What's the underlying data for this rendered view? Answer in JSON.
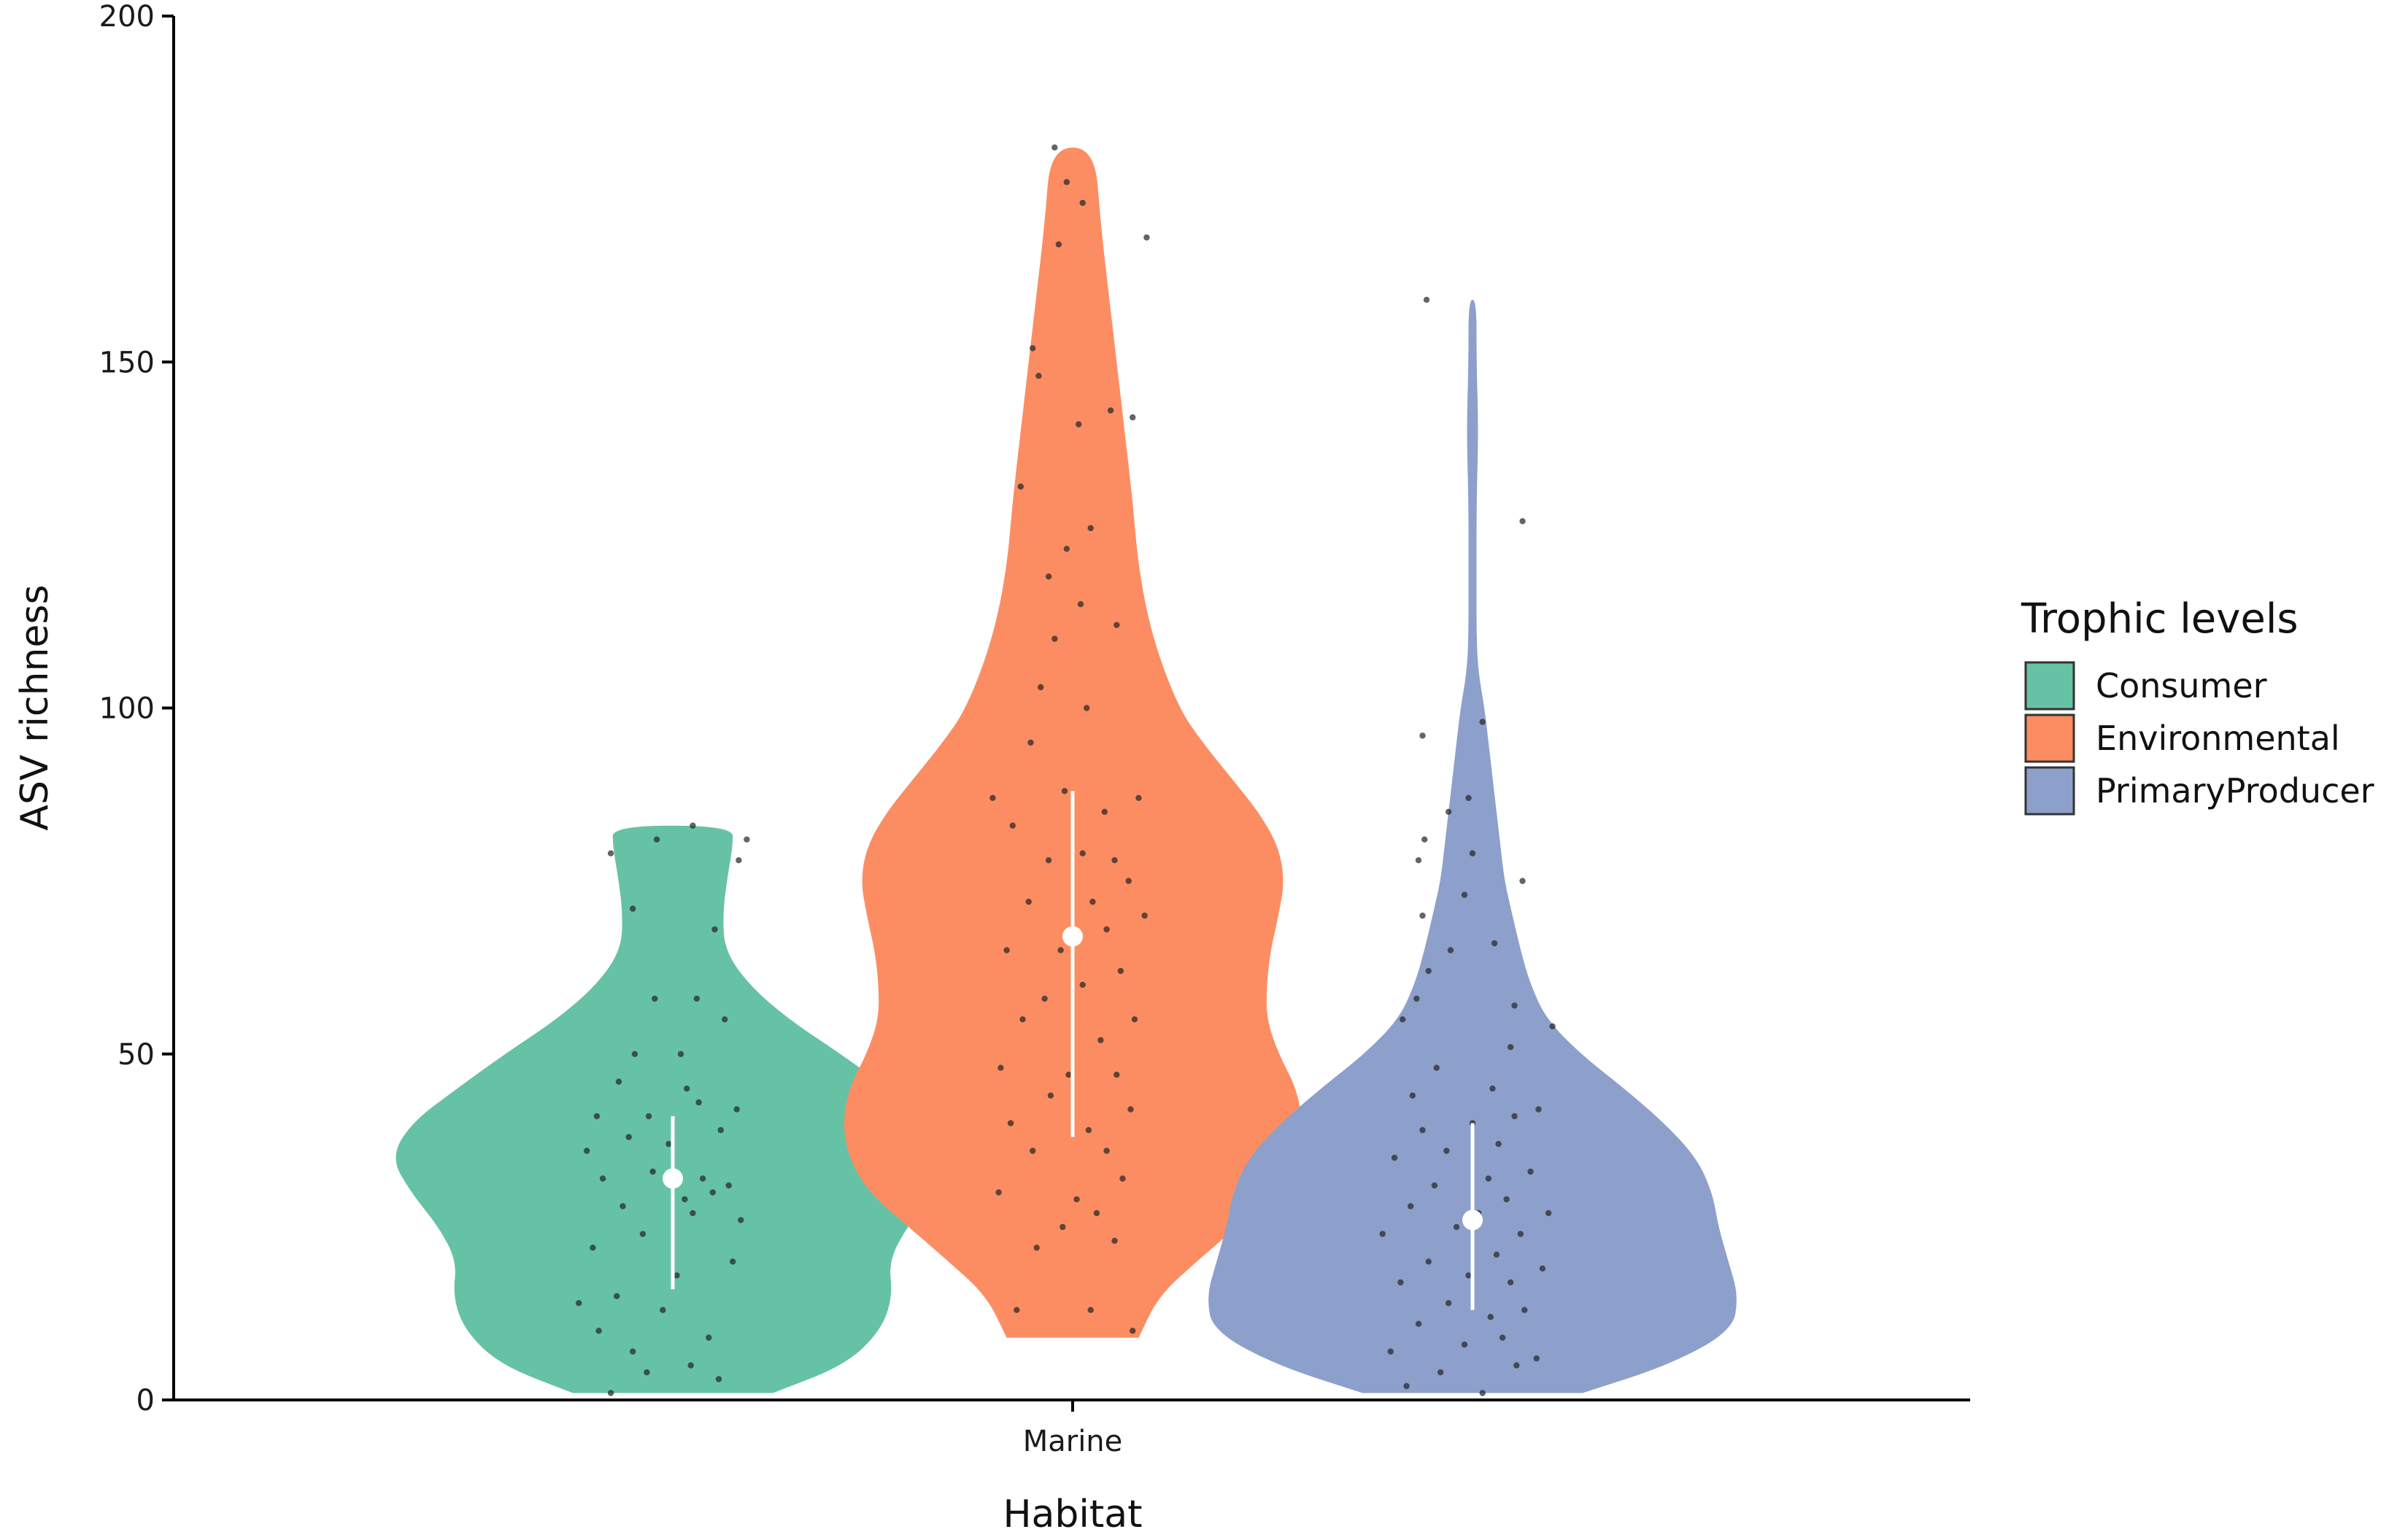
{
  "chart_data": {
    "type": "violin",
    "title": "",
    "xlabel": "Habitat",
    "ylabel": "ASV richness",
    "ylim": [
      0,
      200
    ],
    "yticks": [
      0,
      50,
      100,
      150,
      200
    ],
    "categories": [
      "Marine"
    ],
    "grid": false,
    "legend": {
      "title": "Trophic levels",
      "placement": "right"
    },
    "series": [
      {
        "name": "Consumer",
        "color": "#66c2a5",
        "range": [
          1,
          83
        ],
        "median": 32,
        "iqr": [
          16,
          41
        ],
        "density_profile": [
          [
            1,
            0.5
          ],
          [
            5,
            0.86
          ],
          [
            10,
            1.04
          ],
          [
            15,
            1.1
          ],
          [
            20,
            1.08
          ],
          [
            25,
            1.17
          ],
          [
            30,
            1.31
          ],
          [
            35,
            1.41
          ],
          [
            40,
            1.31
          ],
          [
            45,
            1.08
          ],
          [
            50,
            0.84
          ],
          [
            55,
            0.58
          ],
          [
            60,
            0.38
          ],
          [
            65,
            0.26
          ],
          [
            70,
            0.25
          ],
          [
            75,
            0.27
          ],
          [
            80,
            0.3
          ],
          [
            83,
            0.3
          ]
        ],
        "points": [
          [
            -0.31,
            1
          ],
          [
            -0.13,
            4
          ],
          [
            0.09,
            5
          ],
          [
            0.23,
            3
          ],
          [
            -0.37,
            10
          ],
          [
            -0.2,
            7
          ],
          [
            -0.05,
            13
          ],
          [
            0.18,
            9
          ],
          [
            -0.47,
            14
          ],
          [
            -0.28,
            15
          ],
          [
            0.02,
            18
          ],
          [
            0.3,
            20
          ],
          [
            -0.4,
            22
          ],
          [
            -0.15,
            24
          ],
          [
            0.1,
            27
          ],
          [
            0.34,
            26
          ],
          [
            -0.25,
            28
          ],
          [
            0.06,
            29
          ],
          [
            0.2,
            30
          ],
          [
            -0.35,
            32
          ],
          [
            -0.1,
            33
          ],
          [
            0.15,
            32
          ],
          [
            0.28,
            31
          ],
          [
            -0.43,
            36
          ],
          [
            -0.22,
            38
          ],
          [
            -0.02,
            37
          ],
          [
            0.24,
            39
          ],
          [
            -0.38,
            41
          ],
          [
            -0.12,
            41
          ],
          [
            0.13,
            43
          ],
          [
            0.32,
            42
          ],
          [
            -0.27,
            46
          ],
          [
            0.07,
            45
          ],
          [
            -0.19,
            50
          ],
          [
            0.04,
            50
          ],
          [
            0.26,
            55
          ],
          [
            -0.09,
            58
          ],
          [
            0.12,
            58
          ],
          [
            0.21,
            68
          ],
          [
            -0.2,
            71
          ],
          [
            0.33,
            78
          ],
          [
            -0.31,
            79
          ],
          [
            0.37,
            81
          ],
          [
            -0.08,
            81
          ],
          [
            0.1,
            83
          ]
        ]
      },
      {
        "name": "Environmental",
        "color": "#fc8d62",
        "range": [
          9,
          181
        ],
        "median": 67,
        "iqr": [
          38,
          88
        ],
        "density_profile": [
          [
            9,
            0.33
          ],
          [
            15,
            0.43
          ],
          [
            20,
            0.62
          ],
          [
            25,
            0.82
          ],
          [
            30,
            1.02
          ],
          [
            35,
            1.12
          ],
          [
            40,
            1.15
          ],
          [
            45,
            1.12
          ],
          [
            50,
            1.03
          ],
          [
            55,
            0.97
          ],
          [
            60,
            0.97
          ],
          [
            65,
            0.99
          ],
          [
            70,
            1.03
          ],
          [
            75,
            1.06
          ],
          [
            80,
            1.03
          ],
          [
            85,
            0.93
          ],
          [
            90,
            0.79
          ],
          [
            95,
            0.65
          ],
          [
            100,
            0.53
          ],
          [
            110,
            0.4
          ],
          [
            120,
            0.33
          ],
          [
            130,
            0.3
          ],
          [
            140,
            0.26
          ],
          [
            150,
            0.22
          ],
          [
            160,
            0.18
          ],
          [
            170,
            0.14
          ],
          [
            181,
            0.11
          ]
        ],
        "points": [
          [
            -0.28,
            13
          ],
          [
            0.09,
            13
          ],
          [
            0.3,
            10
          ],
          [
            -0.18,
            22
          ],
          [
            0.21,
            23
          ],
          [
            -0.05,
            25
          ],
          [
            0.12,
            27
          ],
          [
            -0.37,
            30
          ],
          [
            0.02,
            29
          ],
          [
            0.25,
            32
          ],
          [
            -0.2,
            36
          ],
          [
            0.17,
            36
          ],
          [
            -0.31,
            40
          ],
          [
            0.08,
            39
          ],
          [
            0.29,
            42
          ],
          [
            -0.11,
            44
          ],
          [
            0.22,
            47
          ],
          [
            -0.36,
            48
          ],
          [
            -0.02,
            47
          ],
          [
            0.14,
            52
          ],
          [
            -0.25,
            55
          ],
          [
            0.31,
            55
          ],
          [
            -0.14,
            58
          ],
          [
            0.05,
            60
          ],
          [
            0.24,
            62
          ],
          [
            -0.33,
            65
          ],
          [
            -0.06,
            65
          ],
          [
            0.17,
            68
          ],
          [
            0.36,
            70
          ],
          [
            -0.22,
            72
          ],
          [
            0.1,
            72
          ],
          [
            0.28,
            75
          ],
          [
            -0.12,
            78
          ],
          [
            0.05,
            79
          ],
          [
            0.21,
            78
          ],
          [
            -0.3,
            83
          ],
          [
            0.16,
            85
          ],
          [
            -0.04,
            88
          ],
          [
            0.33,
            87
          ],
          [
            -0.4,
            87
          ],
          [
            -0.21,
            95
          ],
          [
            0.07,
            100
          ],
          [
            -0.16,
            103
          ],
          [
            -0.09,
            110
          ],
          [
            0.04,
            115
          ],
          [
            -0.12,
            119
          ],
          [
            0.22,
            112
          ],
          [
            -0.03,
            123
          ],
          [
            0.09,
            126
          ],
          [
            -0.26,
            132
          ],
          [
            0.03,
            141
          ],
          [
            0.19,
            143
          ],
          [
            0.3,
            142
          ],
          [
            -0.17,
            148
          ],
          [
            -0.2,
            152
          ],
          [
            0.37,
            168
          ],
          [
            0.05,
            173
          ],
          [
            -0.07,
            167
          ],
          [
            -0.03,
            176
          ],
          [
            -0.09,
            181
          ]
        ]
      },
      {
        "name": "PrimaryProducer",
        "color": "#8da0cb",
        "range": [
          1,
          159
        ],
        "median": 26,
        "iqr": [
          13,
          40
        ],
        "density_profile": [
          [
            1,
            0.55
          ],
          [
            5,
            0.98
          ],
          [
            10,
            1.3
          ],
          [
            15,
            1.33
          ],
          [
            20,
            1.28
          ],
          [
            25,
            1.23
          ],
          [
            30,
            1.2
          ],
          [
            35,
            1.12
          ],
          [
            40,
            0.96
          ],
          [
            45,
            0.76
          ],
          [
            50,
            0.54
          ],
          [
            55,
            0.37
          ],
          [
            60,
            0.29
          ],
          [
            65,
            0.24
          ],
          [
            70,
            0.2
          ],
          [
            75,
            0.16
          ],
          [
            80,
            0.14
          ],
          [
            85,
            0.12
          ],
          [
            90,
            0.1
          ],
          [
            95,
            0.08
          ],
          [
            100,
            0.06
          ],
          [
            105,
            0.03
          ],
          [
            110,
            0.02
          ],
          [
            120,
            0.02
          ],
          [
            130,
            0.02
          ],
          [
            140,
            0.03
          ],
          [
            150,
            0.02
          ],
          [
            159,
            0.02
          ]
        ],
        "points": [
          [
            -0.33,
            2
          ],
          [
            0.05,
            1
          ],
          [
            -0.16,
            4
          ],
          [
            0.22,
            5
          ],
          [
            -0.41,
            7
          ],
          [
            -0.04,
            8
          ],
          [
            0.15,
            9
          ],
          [
            0.32,
            6
          ],
          [
            -0.27,
            11
          ],
          [
            0.09,
            12
          ],
          [
            -0.12,
            14
          ],
          [
            0.26,
            13
          ],
          [
            -0.36,
            17
          ],
          [
            -0.02,
            18
          ],
          [
            0.19,
            17
          ],
          [
            -0.22,
            20
          ],
          [
            0.12,
            21
          ],
          [
            0.35,
            19
          ],
          [
            -0.45,
            24
          ],
          [
            -0.08,
            25
          ],
          [
            0.24,
            24
          ],
          [
            -0.31,
            28
          ],
          [
            0.03,
            27
          ],
          [
            0.17,
            29
          ],
          [
            0.38,
            27
          ],
          [
            -0.19,
            31
          ],
          [
            0.08,
            32
          ],
          [
            0.29,
            33
          ],
          [
            -0.39,
            35
          ],
          [
            -0.13,
            36
          ],
          [
            0.13,
            37
          ],
          [
            -0.25,
            39
          ],
          [
            0.0,
            40
          ],
          [
            0.21,
            41
          ],
          [
            0.33,
            42
          ],
          [
            -0.3,
            44
          ],
          [
            0.1,
            45
          ],
          [
            -0.18,
            48
          ],
          [
            0.19,
            51
          ],
          [
            -0.35,
            55
          ],
          [
            0.4,
            54
          ],
          [
            -0.28,
            58
          ],
          [
            -0.22,
            62
          ],
          [
            0.21,
            57
          ],
          [
            -0.11,
            65
          ],
          [
            0.11,
            66
          ],
          [
            -0.25,
            70
          ],
          [
            -0.04,
            73
          ],
          [
            0.25,
            75
          ],
          [
            -0.27,
            78
          ],
          [
            -0.24,
            81
          ],
          [
            0.0,
            79
          ],
          [
            -0.12,
            85
          ],
          [
            -0.02,
            87
          ],
          [
            -0.25,
            96
          ],
          [
            0.05,
            98
          ],
          [
            0.25,
            127
          ],
          [
            -0.23,
            159
          ]
        ]
      }
    ]
  }
}
